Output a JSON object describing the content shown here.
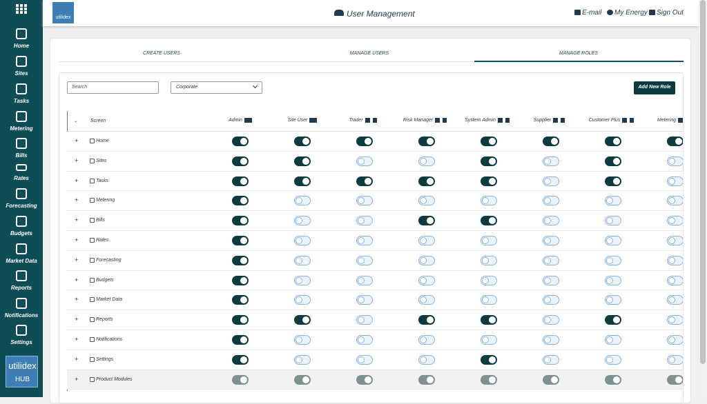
{
  "header": {
    "logo": "utilidex",
    "title": "User Management",
    "links": [
      "E-mail",
      "My Energy",
      "Sign Out"
    ]
  },
  "sidebar": {
    "items": [
      "Home",
      "Sites",
      "Tasks",
      "Metering",
      "Bills",
      "Rates",
      "Forecasting",
      "Budgets",
      "Market Data",
      "Reports",
      "Notifications",
      "Settings"
    ],
    "logo": {
      "brand": "utilidex",
      "sub": "HUB"
    }
  },
  "tabs": {
    "items": [
      "CREATE USERS",
      "MANAGE USERS",
      "MANAGE ROLES"
    ],
    "active": 2
  },
  "filters": {
    "search_placeholder": "Search",
    "select": "Corporate",
    "button": "Add New Role"
  },
  "table": {
    "collapse": "-",
    "expand": "+",
    "screen_header": "Screen",
    "columns": [
      {
        "name": "Admin",
        "deletable": false
      },
      {
        "name": "Site User",
        "deletable": false
      },
      {
        "name": "Trader",
        "deletable": true
      },
      {
        "name": "Risk Manager",
        "deletable": true
      },
      {
        "name": "System Admin",
        "deletable": true
      },
      {
        "name": "Supplier",
        "deletable": true
      },
      {
        "name": "Customer Plus",
        "deletable": true
      },
      {
        "name": "Metering",
        "deletable": true
      }
    ],
    "rows": [
      {
        "screen": "Home",
        "states": [
          "on",
          "on",
          "on",
          "on",
          "on",
          "on",
          "on",
          "on"
        ]
      },
      {
        "screen": "Sites",
        "states": [
          "on",
          "on",
          "off",
          "off",
          "on",
          "off",
          "on",
          "off"
        ]
      },
      {
        "screen": "Tasks",
        "states": [
          "on",
          "on",
          "on",
          "on",
          "on",
          "off",
          "on",
          "off"
        ]
      },
      {
        "screen": "Metering",
        "states": [
          "on",
          "off",
          "off",
          "off",
          "off",
          "off",
          "off",
          "off"
        ]
      },
      {
        "screen": "Bills",
        "states": [
          "on",
          "off",
          "off",
          "on",
          "on",
          "off",
          "off",
          "off"
        ]
      },
      {
        "screen": "Rates",
        "states": [
          "on",
          "off",
          "off",
          "off",
          "off",
          "off",
          "off",
          "off"
        ]
      },
      {
        "screen": "Forecasting",
        "states": [
          "on",
          "off",
          "off",
          "off",
          "off",
          "off",
          "off",
          "off"
        ]
      },
      {
        "screen": "Budgets",
        "states": [
          "on",
          "off",
          "off",
          "off",
          "off",
          "off",
          "off",
          "off"
        ]
      },
      {
        "screen": "Market Data",
        "states": [
          "on",
          "off",
          "off",
          "off",
          "off",
          "off",
          "off",
          "off"
        ]
      },
      {
        "screen": "Reports",
        "states": [
          "on",
          "on",
          "off",
          "on",
          "on",
          "off",
          "on",
          "off"
        ]
      },
      {
        "screen": "Notifications",
        "states": [
          "on",
          "off",
          "off",
          "off",
          "off",
          "off",
          "off",
          "off"
        ]
      },
      {
        "screen": "Settings",
        "states": [
          "on",
          "off",
          "off",
          "off",
          "on",
          "off",
          "off",
          "off"
        ]
      },
      {
        "screen": "Product Modules",
        "states": [
          "locked",
          "locked",
          "locked",
          "locked",
          "locked",
          "locked",
          "locked",
          "locked"
        ]
      }
    ]
  }
}
